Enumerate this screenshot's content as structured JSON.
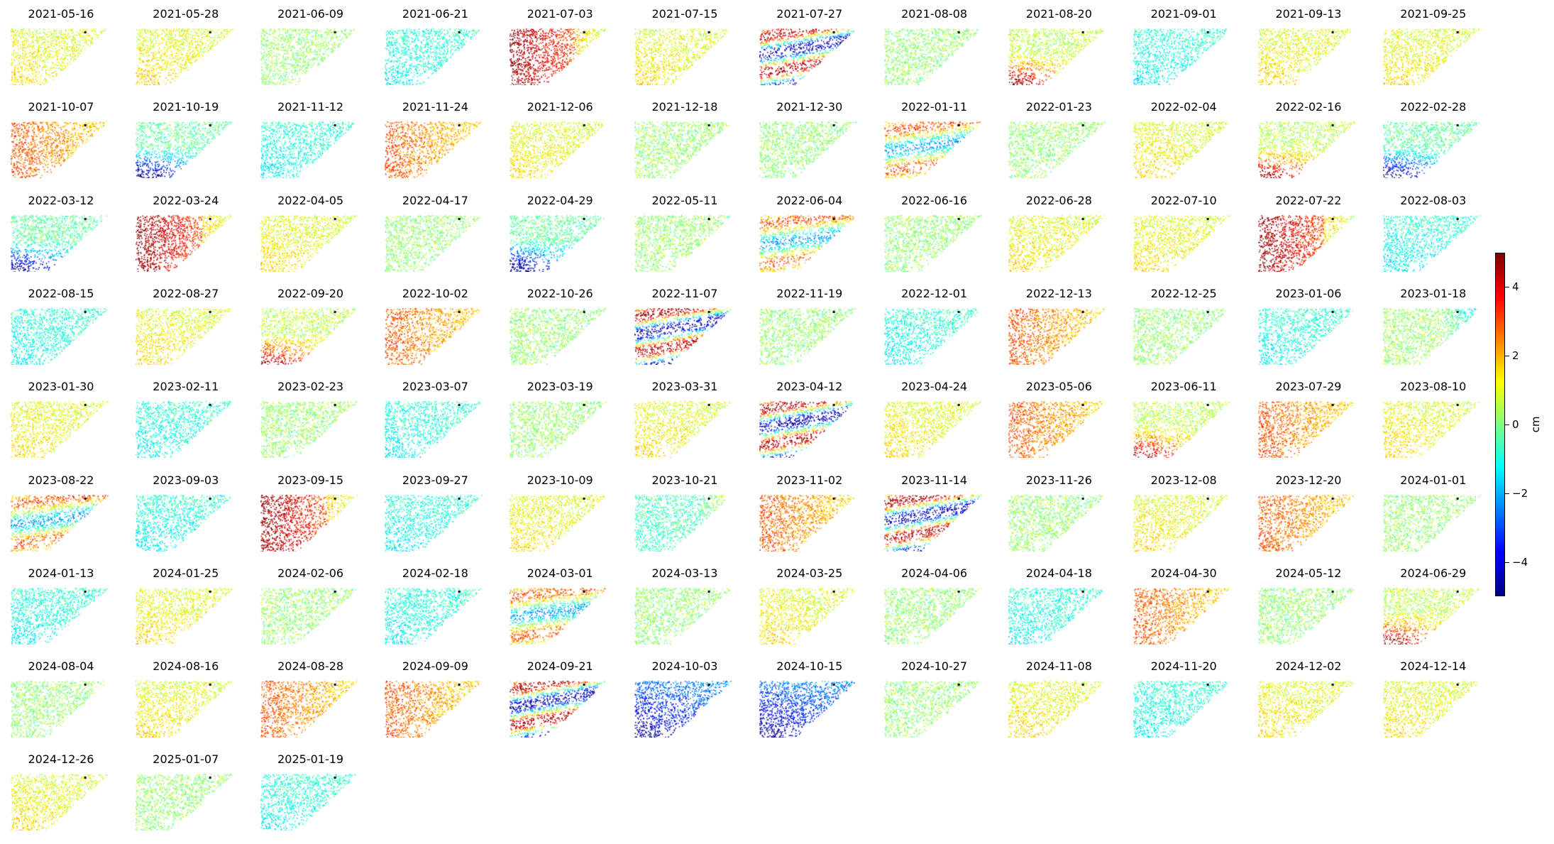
{
  "chart_data": {
    "type": "heatmap",
    "colormap": "jet",
    "reference_point": true,
    "colorbar": {
      "min": -5,
      "max": 5,
      "ticks": [
        4,
        2,
        0,
        -2,
        -4
      ],
      "tick_labels": [
        "4",
        "2",
        "0",
        "−2",
        "−4"
      ],
      "label": "cm"
    },
    "panels": [
      {
        "date": "2021-05-16",
        "pattern": "mild-pos"
      },
      {
        "date": "2021-05-28",
        "pattern": "mild-pos"
      },
      {
        "date": "2021-06-09",
        "pattern": "neutral"
      },
      {
        "date": "2021-06-21",
        "pattern": "mild-neg"
      },
      {
        "date": "2021-07-03",
        "pattern": "strong-pos-west"
      },
      {
        "date": "2021-07-15",
        "pattern": "mild-pos"
      },
      {
        "date": "2021-07-27",
        "pattern": "banded-strong"
      },
      {
        "date": "2021-08-08",
        "pattern": "neutral"
      },
      {
        "date": "2021-08-20",
        "pattern": "strong-pos-sw"
      },
      {
        "date": "2021-09-01",
        "pattern": "mild-neg"
      },
      {
        "date": "2021-09-13",
        "pattern": "mild-pos"
      },
      {
        "date": "2021-09-25",
        "pattern": "mild-pos"
      },
      {
        "date": "2021-10-07",
        "pattern": "pos"
      },
      {
        "date": "2021-10-19",
        "pattern": "neg-sw"
      },
      {
        "date": "2021-11-12",
        "pattern": "mild-neg"
      },
      {
        "date": "2021-11-24",
        "pattern": "pos"
      },
      {
        "date": "2021-12-06",
        "pattern": "mild-pos"
      },
      {
        "date": "2021-12-18",
        "pattern": "neutral"
      },
      {
        "date": "2021-12-30",
        "pattern": "neutral"
      },
      {
        "date": "2022-01-11",
        "pattern": "banded"
      },
      {
        "date": "2022-01-23",
        "pattern": "neutral"
      },
      {
        "date": "2022-02-04",
        "pattern": "mild-pos"
      },
      {
        "date": "2022-02-16",
        "pattern": "strong-pos-sw"
      },
      {
        "date": "2022-02-28",
        "pattern": "neg-sw"
      },
      {
        "date": "2022-03-12",
        "pattern": "neg-sw"
      },
      {
        "date": "2022-03-24",
        "pattern": "strong-pos-west"
      },
      {
        "date": "2022-04-05",
        "pattern": "mild-pos"
      },
      {
        "date": "2022-04-17",
        "pattern": "neutral"
      },
      {
        "date": "2022-04-29",
        "pattern": "neg-sw"
      },
      {
        "date": "2022-05-11",
        "pattern": "neutral"
      },
      {
        "date": "2022-06-04",
        "pattern": "banded"
      },
      {
        "date": "2022-06-16",
        "pattern": "neutral"
      },
      {
        "date": "2022-06-28",
        "pattern": "mild-pos"
      },
      {
        "date": "2022-07-10",
        "pattern": "mild-pos"
      },
      {
        "date": "2022-07-22",
        "pattern": "strong-pos-west"
      },
      {
        "date": "2022-08-03",
        "pattern": "mild-neg"
      },
      {
        "date": "2022-08-15",
        "pattern": "mild-neg"
      },
      {
        "date": "2022-08-27",
        "pattern": "mild-pos"
      },
      {
        "date": "2022-09-20",
        "pattern": "strong-pos-sw"
      },
      {
        "date": "2022-10-02",
        "pattern": "pos"
      },
      {
        "date": "2022-10-26",
        "pattern": "neutral"
      },
      {
        "date": "2022-11-07",
        "pattern": "banded-strong"
      },
      {
        "date": "2022-11-19",
        "pattern": "neutral"
      },
      {
        "date": "2022-12-01",
        "pattern": "mild-neg"
      },
      {
        "date": "2022-12-13",
        "pattern": "pos"
      },
      {
        "date": "2022-12-25",
        "pattern": "neutral"
      },
      {
        "date": "2023-01-06",
        "pattern": "mild-neg"
      },
      {
        "date": "2023-01-18",
        "pattern": "neg-ne"
      },
      {
        "date": "2023-01-30",
        "pattern": "mild-pos"
      },
      {
        "date": "2023-02-11",
        "pattern": "mild-neg"
      },
      {
        "date": "2023-02-23",
        "pattern": "neutral"
      },
      {
        "date": "2023-03-07",
        "pattern": "mild-neg"
      },
      {
        "date": "2023-03-19",
        "pattern": "neutral"
      },
      {
        "date": "2023-03-31",
        "pattern": "mild-pos"
      },
      {
        "date": "2023-04-12",
        "pattern": "banded-strong"
      },
      {
        "date": "2023-04-24",
        "pattern": "mild-pos"
      },
      {
        "date": "2023-05-06",
        "pattern": "pos"
      },
      {
        "date": "2023-06-11",
        "pattern": "strong-pos-sw"
      },
      {
        "date": "2023-07-29",
        "pattern": "pos"
      },
      {
        "date": "2023-08-10",
        "pattern": "mild-pos"
      },
      {
        "date": "2023-08-22",
        "pattern": "banded"
      },
      {
        "date": "2023-09-03",
        "pattern": "mild-neg"
      },
      {
        "date": "2023-09-15",
        "pattern": "strong-pos-west"
      },
      {
        "date": "2023-09-27",
        "pattern": "mild-neg"
      },
      {
        "date": "2023-10-09",
        "pattern": "mild-pos"
      },
      {
        "date": "2023-10-21",
        "pattern": "pos-ne"
      },
      {
        "date": "2023-11-02",
        "pattern": "pos"
      },
      {
        "date": "2023-11-14",
        "pattern": "banded-strong"
      },
      {
        "date": "2023-11-26",
        "pattern": "neutral"
      },
      {
        "date": "2023-12-08",
        "pattern": "mild-pos"
      },
      {
        "date": "2023-12-20",
        "pattern": "pos"
      },
      {
        "date": "2024-01-01",
        "pattern": "neutral"
      },
      {
        "date": "2024-01-13",
        "pattern": "mild-neg"
      },
      {
        "date": "2024-01-25",
        "pattern": "mild-pos"
      },
      {
        "date": "2024-02-06",
        "pattern": "neutral"
      },
      {
        "date": "2024-02-18",
        "pattern": "mild-neg"
      },
      {
        "date": "2024-03-01",
        "pattern": "banded"
      },
      {
        "date": "2024-03-13",
        "pattern": "neutral"
      },
      {
        "date": "2024-03-25",
        "pattern": "mild-pos"
      },
      {
        "date": "2024-04-06",
        "pattern": "neutral"
      },
      {
        "date": "2024-04-18",
        "pattern": "mild-neg"
      },
      {
        "date": "2024-04-30",
        "pattern": "pos"
      },
      {
        "date": "2024-05-12",
        "pattern": "neutral"
      },
      {
        "date": "2024-06-29",
        "pattern": "strong-pos-sw"
      },
      {
        "date": "2024-08-04",
        "pattern": "neutral"
      },
      {
        "date": "2024-08-16",
        "pattern": "mild-pos"
      },
      {
        "date": "2024-08-28",
        "pattern": "pos"
      },
      {
        "date": "2024-09-09",
        "pattern": "pos"
      },
      {
        "date": "2024-09-21",
        "pattern": "banded-strong"
      },
      {
        "date": "2024-10-03",
        "pattern": "neg-strong"
      },
      {
        "date": "2024-10-15",
        "pattern": "neg-strong"
      },
      {
        "date": "2024-10-27",
        "pattern": "neutral"
      },
      {
        "date": "2024-11-08",
        "pattern": "mild-pos"
      },
      {
        "date": "2024-11-20",
        "pattern": "mild-neg"
      },
      {
        "date": "2024-12-02",
        "pattern": "mild-pos"
      },
      {
        "date": "2024-12-14",
        "pattern": "mild-pos"
      },
      {
        "date": "2024-12-26",
        "pattern": "mild-pos"
      },
      {
        "date": "2025-01-07",
        "pattern": "neutral"
      },
      {
        "date": "2025-01-19",
        "pattern": "mild-neg"
      }
    ]
  }
}
